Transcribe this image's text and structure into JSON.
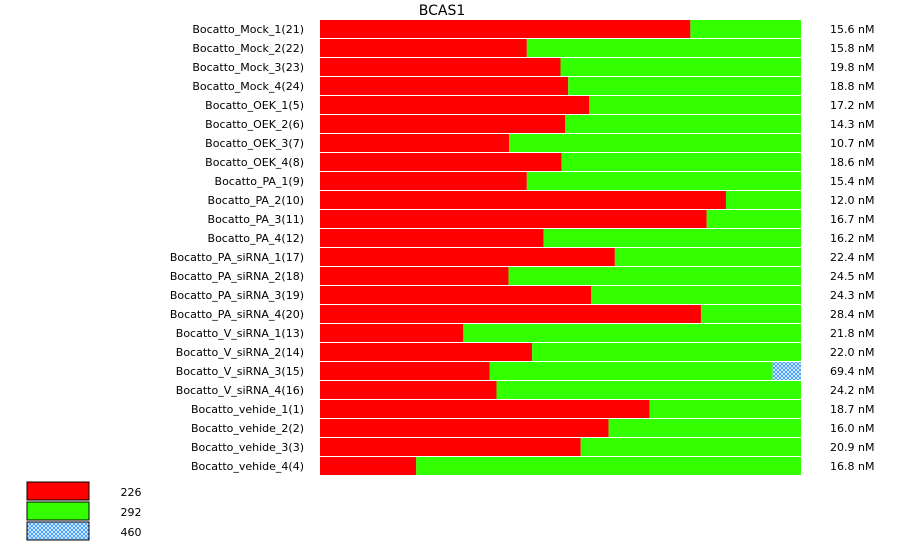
{
  "chart_data": {
    "type": "bar",
    "stacked": "percent",
    "orientation": "horizontal",
    "title": "BCAS1",
    "categories": [
      "Bocatto_Mock_1(21)",
      "Bocatto_Mock_2(22)",
      "Bocatto_Mock_3(23)",
      "Bocatto_Mock_4(24)",
      "Bocatto_OEK_1(5)",
      "Bocatto_OEK_2(6)",
      "Bocatto_OEK_3(7)",
      "Bocatto_OEK_4(8)",
      "Bocatto_PA_1(9)",
      "Bocatto_PA_2(10)",
      "Bocatto_PA_3(11)",
      "Bocatto_PA_4(12)",
      "Bocatto_PA_siRNA_1(17)",
      "Bocatto_PA_siRNA_2(18)",
      "Bocatto_PA_siRNA_3(19)",
      "Bocatto_PA_siRNA_4(20)",
      "Bocatto_V_siRNA_1(13)",
      "Bocatto_V_siRNA_2(14)",
      "Bocatto_V_siRNA_3(15)",
      "Bocatto_V_siRNA_4(16)",
      "Bocatto_vehide_1(1)",
      "Bocatto_vehide_2(2)",
      "Bocatto_vehide_3(3)",
      "Bocatto_vehide_4(4)"
    ],
    "totals": [
      "15.6 nM",
      "15.8 nM",
      "19.8 nM",
      "18.8 nM",
      "17.2 nM",
      "14.3 nM",
      "10.7 nM",
      "18.6 nM",
      "15.4 nM",
      "12.0 nM",
      "16.7 nM",
      "16.2 nM",
      "22.4 nM",
      "24.5 nM",
      "24.3 nM",
      "28.4 nM",
      "21.8 nM",
      "22.0 nM",
      "69.4 nM",
      "24.2 nM",
      "18.7 nM",
      "16.0 nM",
      "20.9 nM",
      "16.8 nM"
    ],
    "series": [
      {
        "name": "226",
        "color": "#ff0000",
        "pattern": "solid",
        "values": [
          77.0,
          43.0,
          50.0,
          51.6,
          56.0,
          51.0,
          39.3,
          50.2,
          43.0,
          84.4,
          80.4,
          46.5,
          61.3,
          39.2,
          56.4,
          79.2,
          29.8,
          44.1,
          35.3,
          36.7,
          68.5,
          60.0,
          54.2,
          20.0
        ]
      },
      {
        "name": "292",
        "color": "#33ff00",
        "pattern": "solid",
        "values": [
          23.0,
          57.0,
          50.0,
          48.4,
          44.0,
          49.0,
          60.7,
          49.8,
          57.0,
          15.6,
          19.6,
          53.5,
          38.7,
          60.8,
          43.6,
          20.8,
          70.2,
          55.9,
          58.8,
          63.3,
          31.5,
          40.0,
          45.8,
          80.0
        ]
      },
      {
        "name": "460",
        "color": "#3399ff",
        "pattern": "crosshatch",
        "values": [
          0,
          0,
          0,
          0,
          0,
          0,
          0,
          0,
          0,
          0,
          0,
          0,
          0,
          0,
          0,
          0,
          0,
          0,
          5.9,
          0,
          0,
          0,
          0,
          0
        ]
      }
    ],
    "xlim": [
      0,
      100
    ],
    "legend": {
      "placement": "bottom-left"
    },
    "grid": false
  }
}
